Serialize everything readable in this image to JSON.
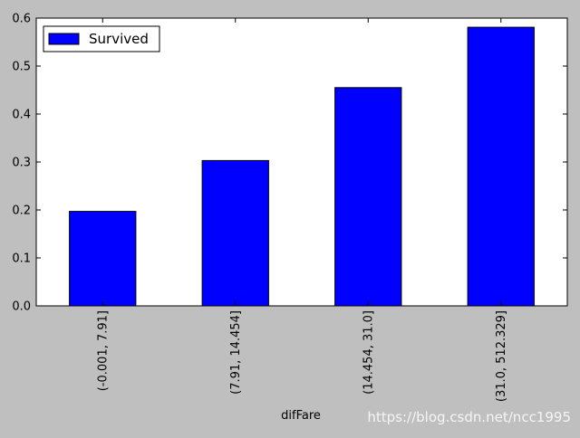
{
  "chart_data": {
    "type": "bar",
    "categories": [
      "(-0.001, 7.91]",
      "(7.91, 14.454]",
      "(14.454, 31.0]",
      "(31.0, 512.329]"
    ],
    "series": [
      {
        "name": "Survived",
        "values": [
          0.197,
          0.303,
          0.455,
          0.581
        ],
        "color": "#0000ff"
      }
    ],
    "xlabel": "difFare",
    "ylabel": "",
    "ylim": [
      0,
      0.6
    ],
    "yticks": [
      0.0,
      0.1,
      0.2,
      0.3,
      0.4,
      0.5,
      0.6
    ],
    "ytick_labels": [
      "0.0",
      "0.1",
      "0.2",
      "0.3",
      "0.4",
      "0.5",
      "0.6"
    ],
    "grid": false,
    "legend_position": "top-left"
  },
  "colors": {
    "figure_background": "#bfbfbf",
    "axes_background": "#ffffff",
    "bar_fill": "#0000ff",
    "bar_edge": "#000000"
  },
  "watermark": "https://blog.csdn.net/ncc1995"
}
